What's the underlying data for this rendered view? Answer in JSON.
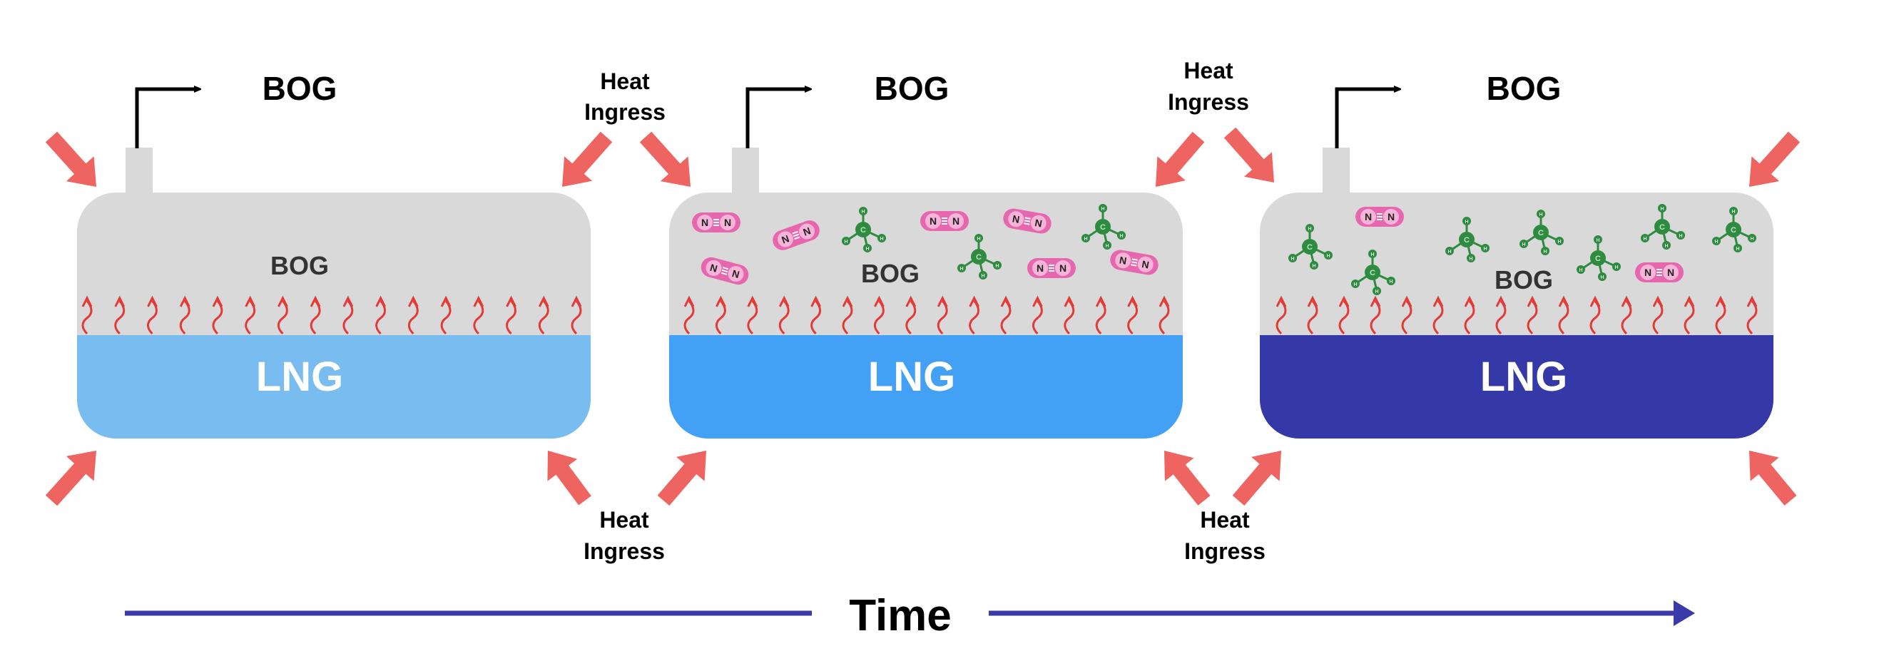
{
  "labels": {
    "bog_out": "BOG",
    "bog_inside": "BOG",
    "lng": "LNG",
    "heat_line1": "Heat",
    "heat_line2": "Ingress",
    "time": "Time"
  },
  "molecules": {
    "n2_atom": "N",
    "ch4_center": "C",
    "ch4_h": "H"
  },
  "colors": {
    "tank_gas": "#d9d9d9",
    "lng_stage1": "#78bcf0",
    "lng_stage2": "#42a0f5",
    "lng_stage3": "#3539a7",
    "heat_arrow": "#ee6461",
    "evap_wave": "#e53935",
    "n2_molecule": "#e667ad",
    "ch4_molecule": "#2e8b3f",
    "time_arrow": "#3a3aa8",
    "text": "#000000",
    "bog_inside_text": "#333333",
    "lng_text": "#ffffff"
  },
  "stages": [
    {
      "lng_color": "#78bcf0",
      "n2_count": 0,
      "ch4_count": 0
    },
    {
      "lng_color": "#42a0f5",
      "n2_count": 7,
      "ch4_count": 3
    },
    {
      "lng_color": "#3539a7",
      "n2_count": 2,
      "ch4_count": 7
    }
  ]
}
